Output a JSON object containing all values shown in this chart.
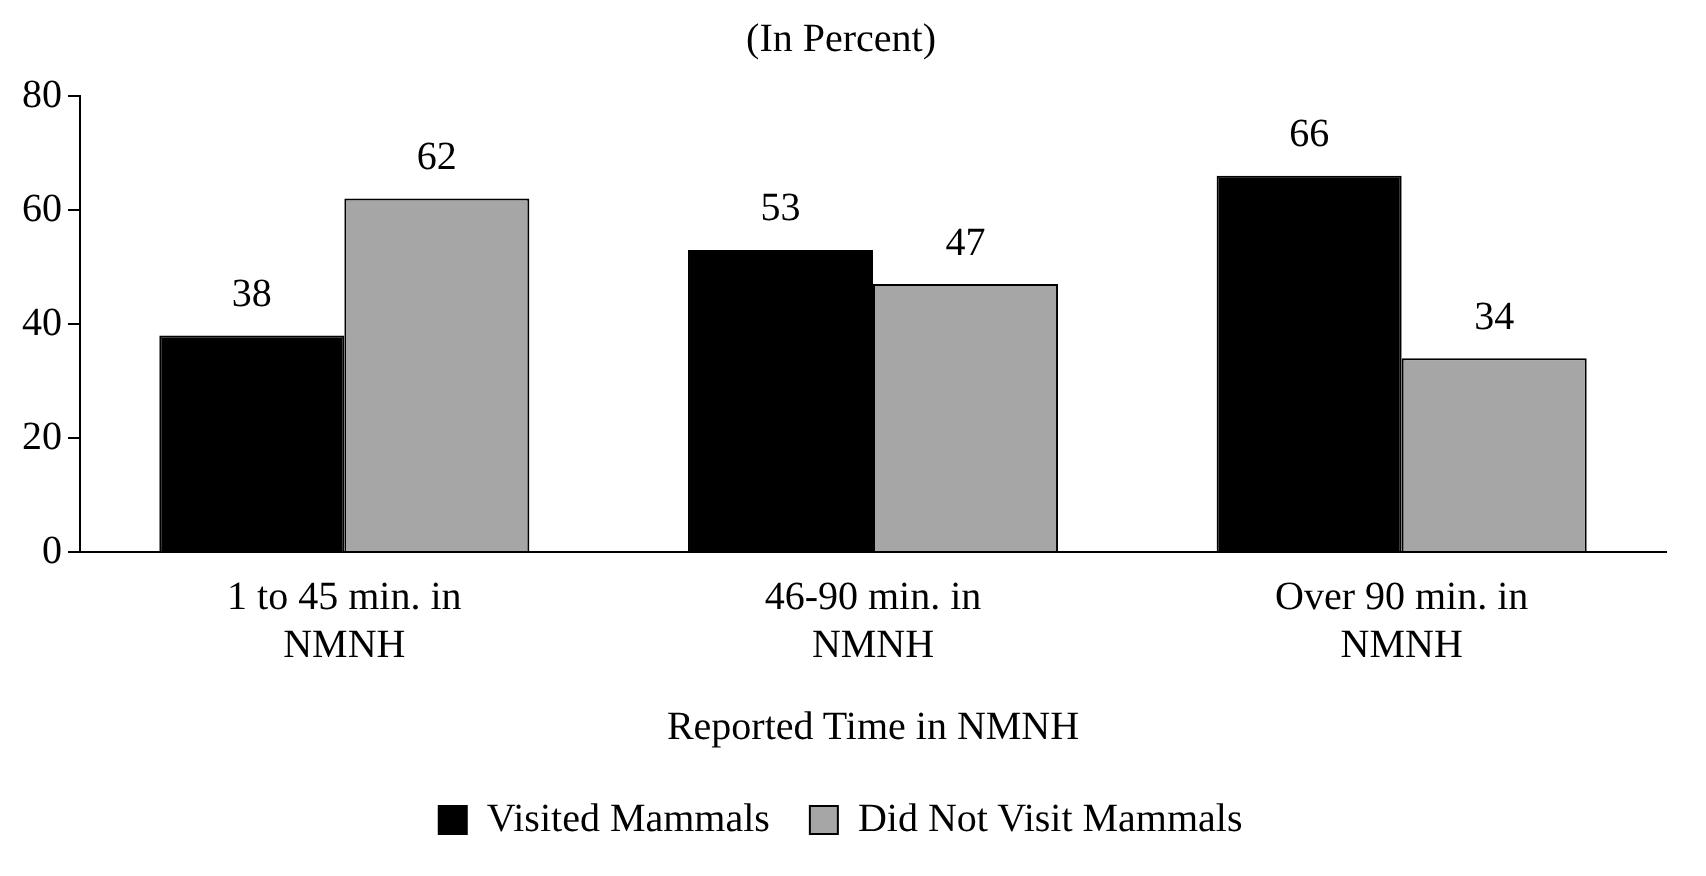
{
  "chart_data": {
    "type": "bar",
    "title": "(In Percent)",
    "xlabel": "Reported Time in NMNH",
    "categories": [
      "1 to 45 min. in NMNH",
      "46-90 min. in NMNH",
      "Over 90 min. in NMNH"
    ],
    "series": [
      {
        "name": "Visited Mammals",
        "color": "#000000",
        "values": [
          38,
          53,
          66
        ]
      },
      {
        "name": "Did Not Visit Mammals",
        "color": "#a6a6a6",
        "values": [
          62,
          47,
          34
        ]
      }
    ],
    "ylim": [
      0,
      80
    ],
    "yticks": [
      0,
      20,
      40,
      60,
      80
    ],
    "grid": false,
    "legend": "bottom",
    "data_labels": true
  }
}
